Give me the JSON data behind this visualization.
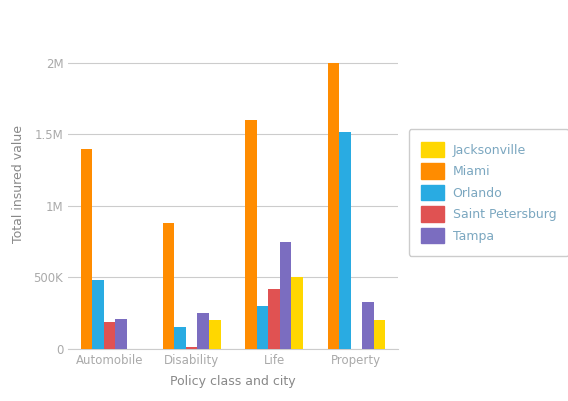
{
  "categories": [
    "Automobile",
    "Disability",
    "Life",
    "Property"
  ],
  "cities": [
    "Miami",
    "Orlando",
    "Saint Petersburg",
    "Tampa",
    "Jacksonville"
  ],
  "colors": [
    "#FF8C00",
    "#29ABE2",
    "#E05252",
    "#7B6DC0",
    "#FFD700"
  ],
  "legend_cities": [
    "Jacksonville",
    "Miami",
    "Orlando",
    "Saint Petersburg",
    "Tampa"
  ],
  "legend_colors": [
    "#FFD700",
    "#FF8C00",
    "#29ABE2",
    "#E05252",
    "#7B6DC0"
  ],
  "values": {
    "Jacksonville": [
      0,
      200000,
      500000,
      200000
    ],
    "Miami": [
      1400000,
      880000,
      1600000,
      2000000
    ],
    "Orlando": [
      480000,
      150000,
      300000,
      1520000
    ],
    "Saint Petersburg": [
      190000,
      10000,
      420000,
      0
    ],
    "Tampa": [
      210000,
      250000,
      750000,
      330000
    ]
  },
  "ylabel": "Total insured value",
  "xlabel": "Policy class and city",
  "ylim": [
    0,
    2300000
  ],
  "yticks": [
    0,
    500000,
    1000000,
    1500000,
    2000000
  ],
  "ytick_labels": [
    "0",
    "500K",
    "1M",
    "1.5M",
    "2M"
  ],
  "background_color": "#FFFFFF",
  "plot_bg_color": "#FFFFFF",
  "grid_color": "#CCCCCC",
  "tick_color": "#AAAAAA",
  "label_color": "#888888",
  "legend_text_color": "#7BA7C0"
}
